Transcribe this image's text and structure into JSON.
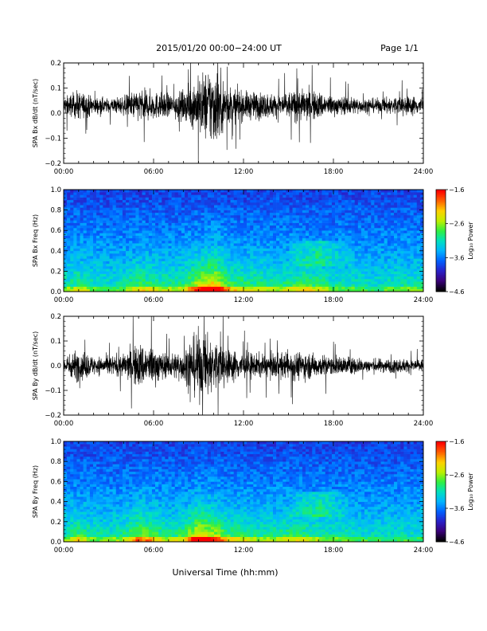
{
  "header": {
    "title": "2015/01/20  00:00−24:00 UT",
    "page": "Page 1/1"
  },
  "x_title": "Universal Time (hh:mm)",
  "colors": {
    "trace": "#000000",
    "spectrogram_scale": [
      "#000000",
      "#3a0078",
      "#2a20c8",
      "#0060ff",
      "#00b4ff",
      "#00e0c0",
      "#30f040",
      "#c0f000",
      "#ffd000",
      "#ff6000",
      "#ff0000"
    ]
  },
  "chart_data": [
    {
      "type": "line",
      "ylabel": "SPA Bx dB/dt (nT/sec)",
      "xlim": [
        0,
        24
      ],
      "ylim": [
        -0.2,
        0.2
      ],
      "x_ticks": [
        "00:00",
        "06:00",
        "12:00",
        "18:00",
        "24:00"
      ],
      "y_ticks": [
        "−0.2",
        "−0.1",
        "0.0",
        "0.1",
        "0.2"
      ],
      "series": [
        {
          "baseline": 0.03,
          "envelope_hours": [
            0,
            1,
            2,
            3,
            4,
            5,
            6,
            7,
            8,
            9,
            10,
            11,
            12,
            13,
            14,
            15,
            16,
            17,
            18,
            19,
            20,
            21,
            22,
            23,
            24
          ],
          "envelope_amplitude": [
            0.04,
            0.06,
            0.04,
            0.03,
            0.04,
            0.07,
            0.06,
            0.05,
            0.06,
            0.12,
            0.18,
            0.08,
            0.06,
            0.06,
            0.05,
            0.06,
            0.07,
            0.06,
            0.04,
            0.04,
            0.03,
            0.03,
            0.04,
            0.04,
            0.04
          ]
        }
      ]
    },
    {
      "type": "heatmap",
      "ylabel": "SPA Bx Freq (Hz)",
      "xlim": [
        0,
        24
      ],
      "ylim": [
        0,
        1
      ],
      "x_ticks": [
        "00:00",
        "06:00",
        "12:00",
        "18:00",
        "24:00"
      ],
      "y_ticks": [
        "0.0",
        "0.2",
        "0.4",
        "0.6",
        "0.8",
        "1.0"
      ],
      "colorbar": {
        "label": "Log₁₀ Power",
        "range": [
          -4.6,
          -1.6
        ],
        "ticks": [
          "−1.6",
          "−2.6",
          "−3.6",
          "−4.6"
        ]
      }
    },
    {
      "type": "line",
      "ylabel": "SPA By dB/dt (nT/sec)",
      "xlim": [
        0,
        24
      ],
      "ylim": [
        -0.2,
        0.2
      ],
      "x_ticks": [
        "00:00",
        "06:00",
        "12:00",
        "18:00",
        "24:00"
      ],
      "y_ticks": [
        "−0.2",
        "−0.1",
        "0.0",
        "0.1",
        "0.2"
      ],
      "series": [
        {
          "baseline": 0.0,
          "envelope_hours": [
            0,
            1,
            2,
            3,
            4,
            5,
            6,
            7,
            8,
            9,
            10,
            11,
            12,
            13,
            14,
            15,
            16,
            17,
            18,
            19,
            20,
            21,
            22,
            23,
            24
          ],
          "envelope_amplitude": [
            0.04,
            0.07,
            0.04,
            0.04,
            0.05,
            0.1,
            0.08,
            0.05,
            0.07,
            0.15,
            0.12,
            0.07,
            0.06,
            0.05,
            0.05,
            0.06,
            0.06,
            0.05,
            0.04,
            0.04,
            0.03,
            0.03,
            0.03,
            0.03,
            0.03
          ]
        }
      ]
    },
    {
      "type": "heatmap",
      "ylabel": "SPA By Freq (Hz)",
      "xlim": [
        0,
        24
      ],
      "ylim": [
        0,
        1
      ],
      "x_ticks": [
        "00:00",
        "06:00",
        "12:00",
        "18:00",
        "24:00"
      ],
      "y_ticks": [
        "0.0",
        "0.2",
        "0.4",
        "0.6",
        "0.8",
        "1.0"
      ],
      "colorbar": {
        "label": "Log₁₀ Power",
        "range": [
          -4.6,
          -1.6
        ],
        "ticks": [
          "−1.6",
          "−2.6",
          "−3.6",
          "−4.6"
        ]
      }
    }
  ]
}
